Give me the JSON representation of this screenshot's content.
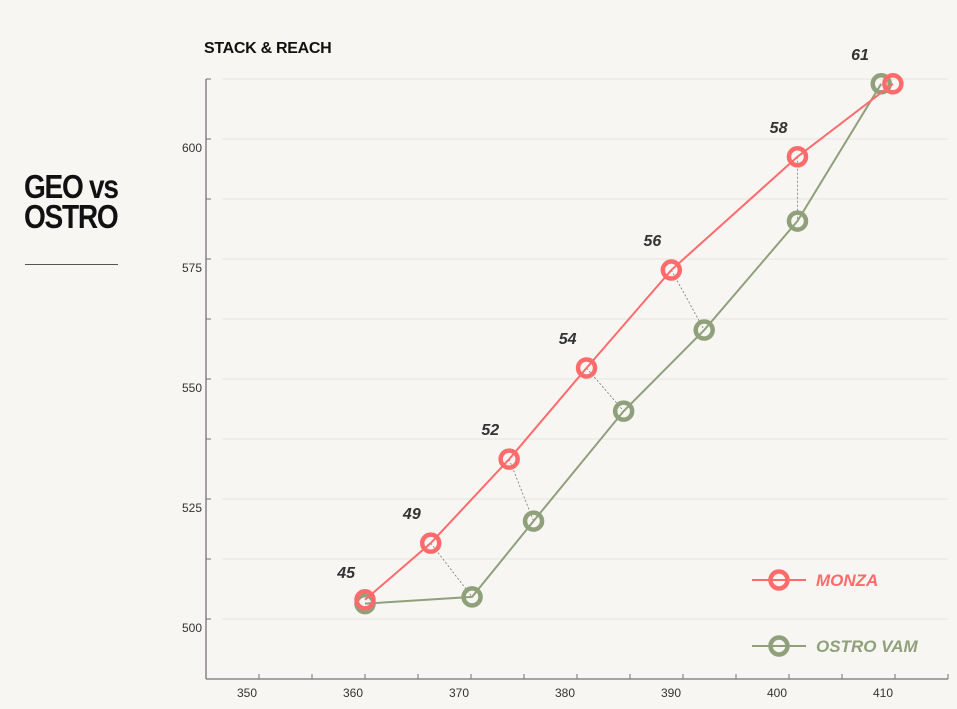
{
  "page": {
    "heading_line1": "GEO vs",
    "heading_line2": "OSTRO"
  },
  "chart_data": {
    "type": "line",
    "title": "STACK & REACH",
    "xlabel": "",
    "ylabel": "",
    "xlim": [
      345,
      415
    ],
    "ylim": [
      487.5,
      612.5
    ],
    "xticks": [
      350,
      360,
      370,
      380,
      390,
      400,
      410
    ],
    "yticks": [
      500,
      525,
      550,
      575,
      600
    ],
    "grid": true,
    "legend_position": "bottom-right",
    "size_labels": [
      "45",
      "49",
      "52",
      "54",
      "56",
      "58",
      "61"
    ],
    "series": [
      {
        "name": "MONZA",
        "color": "#ff6b6b",
        "x": [
          360.0,
          366.2,
          373.6,
          380.9,
          388.9,
          400.8,
          409.8
        ],
        "y": [
          504.0,
          515.8,
          533.3,
          552.3,
          572.7,
          596.3,
          611.5
        ]
      },
      {
        "name": "OSTRO VAM",
        "color": "#8fa07a",
        "x": [
          360.0,
          370.1,
          375.9,
          384.4,
          392.0,
          400.8,
          408.7
        ],
        "y": [
          503.2,
          504.6,
          520.4,
          543.3,
          560.2,
          582.9,
          611.5
        ]
      }
    ]
  }
}
